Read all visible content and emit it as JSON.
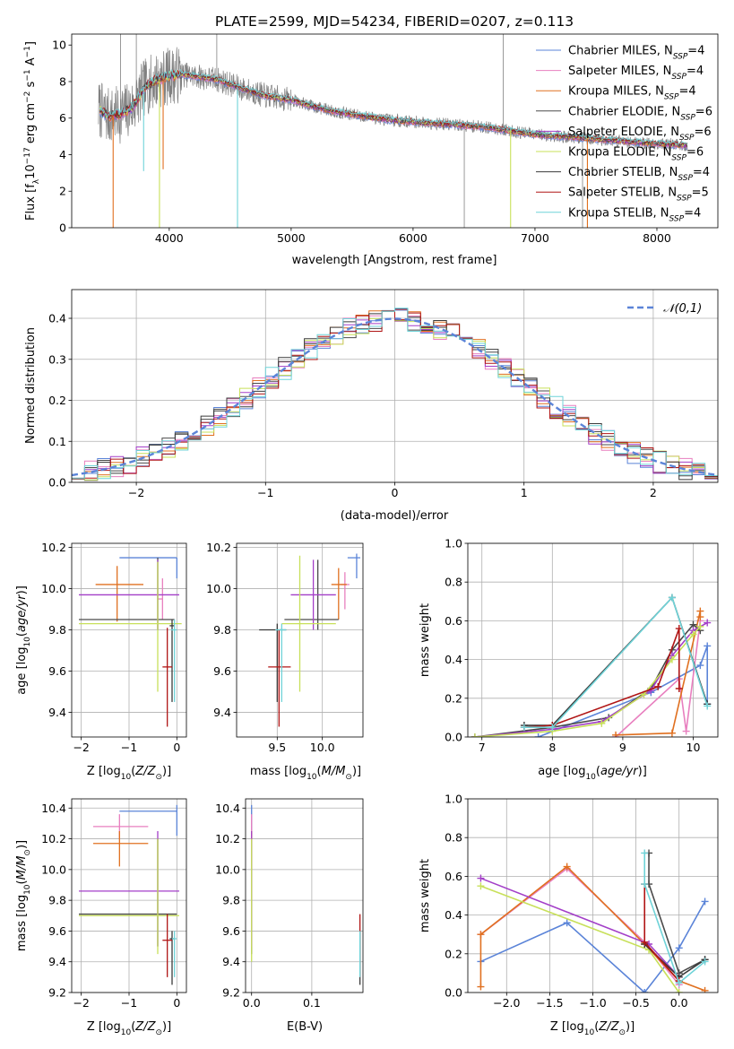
{
  "colors": {
    "Chabrier MILES": "#5b84d8",
    "Salpeter MILES": "#e87fbf",
    "Kroupa MILES": "#e07020",
    "Chabrier ELODIE": "#4a4a4a",
    "Salpeter ELODIE": "#a33fc8",
    "Kroupa ELODIE": "#c8e05a",
    "Chabrier STELIB": "#3a3a3a",
    "Salpeter STELIB": "#b01515",
    "Kroupa STELIB": "#6fd3d8",
    "gauss": "#5b84d8"
  },
  "chart_data": [
    {
      "type": "line",
      "title": "PLATE=2599, MJD=54234, FIBERID=0207, z=0.113",
      "xlabel": "wavelength [Angstrom, rest frame]",
      "ylabel": "Flux [fλ10⁻¹⁷ erg cm⁻² s⁻¹ A⁻¹]",
      "xlim": [
        3200,
        8500
      ],
      "ylim": [
        0,
        10.6
      ],
      "xticks": [
        4000,
        5000,
        6000,
        7000,
        8000
      ],
      "yticks": [
        0,
        2,
        4,
        6,
        8,
        10
      ],
      "grid": false,
      "legend_position": "upper-right",
      "data_color": "#808080",
      "continuum": [
        [
          3420,
          6.5
        ],
        [
          3500,
          6.1
        ],
        [
          3600,
          6.2
        ],
        [
          3700,
          6.6
        ],
        [
          3800,
          7.7
        ],
        [
          3900,
          8.1
        ],
        [
          4000,
          8.3
        ],
        [
          4100,
          8.4
        ],
        [
          4200,
          8.3
        ],
        [
          4400,
          8.1
        ],
        [
          4600,
          7.6
        ],
        [
          4800,
          7.2
        ],
        [
          5000,
          7.0
        ],
        [
          5200,
          6.6
        ],
        [
          5400,
          6.3
        ],
        [
          5600,
          6.1
        ],
        [
          5800,
          5.9
        ],
        [
          6000,
          5.8
        ],
        [
          6200,
          5.7
        ],
        [
          6400,
          5.6
        ],
        [
          6600,
          5.5
        ],
        [
          6800,
          5.3
        ],
        [
          7000,
          5.1
        ],
        [
          7200,
          5.0
        ],
        [
          7400,
          4.9
        ],
        [
          7600,
          4.8
        ],
        [
          7800,
          4.7
        ],
        [
          8000,
          4.6
        ],
        [
          8250,
          4.5
        ]
      ],
      "series": [
        {
          "name": "Chabrier MILES, N_SSP=4",
          "key": "Chabrier MILES"
        },
        {
          "name": "Salpeter MILES, N_SSP=4",
          "key": "Salpeter MILES"
        },
        {
          "name": "Kroupa MILES, N_SSP=4",
          "key": "Kroupa MILES"
        },
        {
          "name": "Chabrier ELODIE, N_SSP=6",
          "key": "Chabrier ELODIE"
        },
        {
          "name": "Salpeter ELODIE, N_SSP=6",
          "key": "Salpeter ELODIE"
        },
        {
          "name": "Kroupa ELODIE, N_SSP=6",
          "key": "Kroupa ELODIE"
        },
        {
          "name": "Chabrier STELIB, N_SSP=4",
          "key": "Chabrier STELIB"
        },
        {
          "name": "Salpeter STELIB, N_SSP=5",
          "key": "Salpeter STELIB"
        },
        {
          "name": "Kroupa STELIB, N_SSP=4",
          "key": "Kroupa STELIB"
        }
      ]
    },
    {
      "type": "line",
      "xlabel": "(data-model)/error",
      "ylabel": "Normed distribution",
      "xlim": [
        -2.5,
        2.5
      ],
      "ylim": [
        0,
        0.47
      ],
      "xticks": [
        -2,
        -1,
        0,
        1,
        2
      ],
      "yticks": [
        0.0,
        0.1,
        0.2,
        0.3,
        0.4
      ],
      "grid": true,
      "legend": "𝒩(0,1)",
      "legend_position": "upper-right",
      "bin_width": 0.1,
      "bin_range": [
        -2.5,
        2.5
      ]
    },
    {
      "type": "scatter",
      "xlabel": "Z [log10(Z/Z⊙)]",
      "ylabel": "age [log10(age/yr)]",
      "xlim": [
        -2.2,
        0.2
      ],
      "ylim": [
        9.28,
        10.22
      ],
      "xticks": [
        -2,
        -1,
        0
      ],
      "yticks": [
        9.4,
        9.6,
        9.8,
        10.0,
        10.2
      ],
      "grid": true,
      "points": [
        {
          "key": "Chabrier MILES",
          "x": 0.0,
          "x_lo": -1.2,
          "x_hi": 0.0,
          "y": 10.15,
          "y_lo": 10.05,
          "y_hi": 10.15
        },
        {
          "key": "Salpeter MILES",
          "x": -0.3,
          "x_lo": -0.4,
          "x_hi": -0.3,
          "y": 9.95,
          "y_lo": 9.85,
          "y_hi": 10.05
        },
        {
          "key": "Kroupa MILES",
          "x": -1.25,
          "x_lo": -1.7,
          "x_hi": -0.7,
          "y": 10.02,
          "y_lo": 9.84,
          "y_hi": 10.11
        },
        {
          "key": "Chabrier ELODIE",
          "x": -0.4,
          "x_lo": -2.05,
          "x_hi": -0.05,
          "y": 9.85,
          "y_lo": 9.8,
          "y_hi": 10.15
        },
        {
          "key": "Salpeter ELODIE",
          "x": -0.4,
          "x_lo": -2.05,
          "x_hi": 0.05,
          "y": 9.97,
          "y_lo": 9.8,
          "y_hi": 10.14
        },
        {
          "key": "Kroupa ELODIE",
          "x": -0.4,
          "x_lo": -2.05,
          "x_hi": 0.1,
          "y": 9.83,
          "y_lo": 9.5,
          "y_hi": 10.13
        },
        {
          "key": "Chabrier STELIB",
          "x": -0.1,
          "x_lo": -0.15,
          "x_hi": -0.05,
          "y": 9.82,
          "y_lo": 9.45,
          "y_hi": 9.85
        },
        {
          "key": "Salpeter STELIB",
          "x": -0.2,
          "x_lo": -0.3,
          "x_hi": -0.1,
          "y": 9.62,
          "y_lo": 9.33,
          "y_hi": 9.81
        },
        {
          "key": "Kroupa STELIB",
          "x": -0.05,
          "x_lo": -0.12,
          "x_hi": 0.0,
          "y": 9.8,
          "y_lo": 9.45,
          "y_hi": 9.85
        }
      ]
    },
    {
      "type": "scatter",
      "xlabel": "mass [log10(M/M⊙)]",
      "xlim": [
        9.05,
        10.45
      ],
      "ylim": [
        9.28,
        10.22
      ],
      "xticks": [
        9.5,
        10.0
      ],
      "yticks": [
        9.4,
        9.6,
        9.8,
        10.0,
        10.2
      ],
      "grid": true,
      "points": [
        {
          "key": "Chabrier MILES",
          "x": 10.38,
          "x_lo": 10.28,
          "x_hi": 10.42,
          "y": 10.15,
          "y_lo": 10.05,
          "y_hi": 10.17
        },
        {
          "key": "Salpeter MILES",
          "x": 10.25,
          "x_lo": 10.2,
          "x_hi": 10.3,
          "y": 10.02,
          "y_lo": 9.9,
          "y_hi": 10.08
        },
        {
          "key": "Kroupa MILES",
          "x": 10.18,
          "x_lo": 10.1,
          "x_hi": 10.27,
          "y": 10.02,
          "y_lo": 9.85,
          "y_hi": 10.1
        },
        {
          "key": "Chabrier ELODIE",
          "x": 9.95,
          "x_lo": 9.58,
          "x_hi": 10.18,
          "y": 9.85,
          "y_lo": 9.8,
          "y_hi": 10.14
        },
        {
          "key": "Salpeter ELODIE",
          "x": 9.9,
          "x_lo": 9.65,
          "x_hi": 10.15,
          "y": 9.97,
          "y_lo": 9.8,
          "y_hi": 10.14
        },
        {
          "key": "Kroupa ELODIE",
          "x": 9.75,
          "x_lo": 9.55,
          "x_hi": 10.15,
          "y": 9.83,
          "y_lo": 9.5,
          "y_hi": 10.16
        },
        {
          "key": "Chabrier STELIB",
          "x": 9.5,
          "x_lo": 9.3,
          "x_hi": 9.6,
          "y": 9.8,
          "y_lo": 9.45,
          "y_hi": 9.83
        },
        {
          "key": "Salpeter STELIB",
          "x": 9.52,
          "x_lo": 9.4,
          "x_hi": 9.65,
          "y": 9.62,
          "y_lo": 9.33,
          "y_hi": 9.8
        },
        {
          "key": "Kroupa STELIB",
          "x": 9.55,
          "x_lo": 9.48,
          "x_hi": 9.6,
          "y": 9.8,
          "y_lo": 9.45,
          "y_hi": 9.83
        }
      ]
    },
    {
      "type": "line",
      "xlabel": "age [log10(age/yr)]",
      "ylabel": "mass weight",
      "xlim": [
        6.8,
        10.35
      ],
      "ylim": [
        0,
        1
      ],
      "xticks": [
        7,
        8,
        9,
        10
      ],
      "yticks": [
        0.0,
        0.2,
        0.4,
        0.6,
        0.8,
        1.0
      ],
      "grid": true,
      "series": [
        {
          "key": "Chabrier MILES",
          "x": [
            7.8,
            9.4,
            10.1,
            10.2,
            10.2
          ],
          "y": [
            0.0,
            0.23,
            0.37,
            0.47,
            0.17
          ]
        },
        {
          "key": "Salpeter MILES",
          "x": [
            8.9,
            9.8,
            9.9,
            10.1
          ],
          "y": [
            0.0,
            0.3,
            0.03,
            0.6
          ]
        },
        {
          "key": "Kroupa MILES",
          "x": [
            8.9,
            9.7,
            10.1,
            10.1
          ],
          "y": [
            0.01,
            0.02,
            0.65,
            0.62
          ]
        },
        {
          "key": "Chabrier ELODIE",
          "x": [
            6.9,
            8.0,
            8.8,
            9.4,
            9.7,
            10.0,
            10.1
          ],
          "y": [
            0.0,
            0.05,
            0.1,
            0.25,
            0.45,
            0.58,
            0.55
          ]
        },
        {
          "key": "Salpeter ELODIE",
          "x": [
            6.9,
            8.0,
            8.7,
            9.4,
            9.7,
            10.0,
            10.2
          ],
          "y": [
            0.0,
            0.04,
            0.08,
            0.24,
            0.42,
            0.55,
            0.59
          ]
        },
        {
          "key": "Kroupa ELODIE",
          "x": [
            6.9,
            8.0,
            8.7,
            9.3,
            9.7,
            10.0,
            10.1
          ],
          "y": [
            0.0,
            0.03,
            0.07,
            0.22,
            0.4,
            0.53,
            0.57
          ]
        },
        {
          "key": "Chabrier STELIB",
          "x": [
            7.6,
            8.0,
            9.7,
            10.2
          ],
          "y": [
            0.06,
            0.06,
            0.72,
            0.17
          ]
        },
        {
          "key": "Salpeter STELIB",
          "x": [
            7.6,
            8.0,
            9.5,
            9.8,
            9.8
          ],
          "y": [
            0.05,
            0.06,
            0.26,
            0.56,
            0.25
          ]
        },
        {
          "key": "Kroupa STELIB",
          "x": [
            7.6,
            8.0,
            9.7,
            10.2
          ],
          "y": [
            0.05,
            0.05,
            0.72,
            0.16
          ]
        }
      ]
    },
    {
      "type": "scatter",
      "xlabel": "Z [log10(Z/Z⊙)]",
      "ylabel": "mass [log10(M/M⊙)]",
      "xlim": [
        -2.2,
        0.2
      ],
      "ylim": [
        9.2,
        10.46
      ],
      "xticks": [
        -2,
        -1,
        0
      ],
      "yticks": [
        9.2,
        9.4,
        9.6,
        9.8,
        10.0,
        10.2,
        10.4
      ],
      "grid": true,
      "points": [
        {
          "key": "Chabrier MILES",
          "x": 0.0,
          "x_lo": -1.2,
          "x_hi": 0.0,
          "y": 10.38,
          "y_lo": 10.22,
          "y_hi": 10.42
        },
        {
          "key": "Salpeter MILES",
          "x": -1.2,
          "x_lo": -1.75,
          "x_hi": -0.6,
          "y": 10.28,
          "y_lo": 10.2,
          "y_hi": 10.36
        },
        {
          "key": "Kroupa MILES",
          "x": -1.2,
          "x_lo": -1.75,
          "x_hi": -0.6,
          "y": 10.17,
          "y_lo": 10.02,
          "y_hi": 10.25
        },
        {
          "key": "Chabrier ELODIE",
          "x": -0.4,
          "x_lo": -2.05,
          "x_hi": 0.0,
          "y": 9.71,
          "y_lo": 9.5,
          "y_hi": 10.2
        },
        {
          "key": "Salpeter ELODIE",
          "x": -0.4,
          "x_lo": -2.05,
          "x_hi": 0.05,
          "y": 9.86,
          "y_lo": 9.5,
          "y_hi": 10.25
        },
        {
          "key": "Kroupa ELODIE",
          "x": -0.4,
          "x_lo": -2.05,
          "x_hi": 0.05,
          "y": 9.7,
          "y_lo": 9.45,
          "y_hi": 10.2
        },
        {
          "key": "Chabrier STELIB",
          "x": -0.1,
          "x_lo": -0.15,
          "x_hi": -0.05,
          "y": 9.55,
          "y_lo": 9.25,
          "y_hi": 9.6
        },
        {
          "key": "Salpeter STELIB",
          "x": -0.2,
          "x_lo": -0.3,
          "x_hi": -0.1,
          "y": 9.54,
          "y_lo": 9.3,
          "y_hi": 9.71
        },
        {
          "key": "Kroupa STELIB",
          "x": -0.05,
          "x_lo": -0.1,
          "x_hi": 0.0,
          "y": 9.55,
          "y_lo": 9.3,
          "y_hi": 9.6
        }
      ]
    },
    {
      "type": "scatter",
      "xlabel": "E(B-V)",
      "xlim": [
        -0.01,
        0.185
      ],
      "ylim": [
        9.2,
        10.46
      ],
      "xticks": [
        0.0,
        0.1
      ],
      "yticks": [
        9.2,
        9.4,
        9.6,
        9.8,
        10.0,
        10.2,
        10.4
      ],
      "grid": true,
      "points": [
        {
          "key": "Chabrier MILES",
          "x": 0.0,
          "x_lo": 0.0,
          "x_hi": 0.0,
          "y": 10.38,
          "y_lo": 10.22,
          "y_hi": 10.42
        },
        {
          "key": "Salpeter MILES",
          "x": 0.0,
          "x_lo": 0.0,
          "x_hi": 0.0,
          "y": 10.28,
          "y_lo": 10.2,
          "y_hi": 10.36
        },
        {
          "key": "Kroupa MILES",
          "x": 0.0,
          "x_lo": 0.0,
          "x_hi": 0.0,
          "y": 10.17,
          "y_lo": 10.02,
          "y_hi": 10.25
        },
        {
          "key": "Chabrier ELODIE",
          "x": 0.0,
          "x_lo": 0.0,
          "x_hi": 0.0,
          "y": 9.71,
          "y_lo": 9.45,
          "y_hi": 10.2
        },
        {
          "key": "Salpeter ELODIE",
          "x": 0.0,
          "x_lo": 0.0,
          "x_hi": 0.0,
          "y": 9.86,
          "y_lo": 9.5,
          "y_hi": 10.25
        },
        {
          "key": "Kroupa ELODIE",
          "x": 0.0,
          "x_lo": 0.0,
          "x_hi": 0.0,
          "y": 9.7,
          "y_lo": 9.4,
          "y_hi": 10.2
        },
        {
          "key": "Chabrier STELIB",
          "x": 0.18,
          "x_lo": 0.18,
          "x_hi": 0.18,
          "y": 9.55,
          "y_lo": 9.25,
          "y_hi": 9.6
        },
        {
          "key": "Salpeter STELIB",
          "x": 0.18,
          "x_lo": 0.18,
          "x_hi": 0.18,
          "y": 9.54,
          "y_lo": 9.3,
          "y_hi": 9.71
        },
        {
          "key": "Kroupa STELIB",
          "x": 0.18,
          "x_lo": 0.18,
          "x_hi": 0.18,
          "y": 9.55,
          "y_lo": 9.3,
          "y_hi": 9.6
        }
      ]
    },
    {
      "type": "line",
      "xlabel": "Z [log10(Z/Z⊙)]",
      "ylabel": "mass weight",
      "xlim": [
        -2.45,
        0.45
      ],
      "ylim": [
        0,
        1
      ],
      "xticks": [
        -2.0,
        -1.5,
        -1.0,
        -0.5,
        0.0
      ],
      "yticks": [
        0.0,
        0.2,
        0.4,
        0.6,
        0.8,
        1.0
      ],
      "grid": true,
      "series": [
        {
          "key": "Chabrier MILES",
          "x": [
            -2.3,
            -1.3,
            -0.4,
            0.0,
            0.3
          ],
          "y": [
            0.16,
            0.36,
            0.0,
            0.23,
            0.47
          ]
        },
        {
          "key": "Salpeter MILES",
          "x": [
            -2.3,
            -1.3,
            -0.4,
            0.0
          ],
          "y": [
            0.3,
            0.64,
            0.26,
            0.04
          ]
        },
        {
          "key": "Kroupa MILES",
          "x": [
            -2.3,
            -2.3,
            -1.3,
            -0.4,
            0.0,
            0.3
          ],
          "y": [
            0.03,
            0.3,
            0.65,
            0.25,
            0.06,
            0.01
          ]
        },
        {
          "key": "Chabrier ELODIE",
          "x": [
            -0.35,
            -0.35,
            0.0,
            0.3
          ],
          "y": [
            0.72,
            0.56,
            0.1,
            0.17
          ]
        },
        {
          "key": "Salpeter ELODIE",
          "x": [
            -2.3,
            -0.35,
            0.0
          ],
          "y": [
            0.59,
            0.25,
            0.08
          ]
        },
        {
          "key": "Kroupa ELODIE",
          "x": [
            -2.3,
            -0.35,
            0.0
          ],
          "y": [
            0.55,
            0.22,
            0.0
          ]
        },
        {
          "key": "Chabrier STELIB",
          "x": [
            -0.4,
            0.0,
            0.3
          ],
          "y": [
            0.25,
            0.08,
            0.17
          ]
        },
        {
          "key": "Salpeter STELIB",
          "x": [
            -0.4,
            -0.4,
            0.0
          ],
          "y": [
            0.56,
            0.26,
            0.06
          ]
        },
        {
          "key": "Kroupa STELIB",
          "x": [
            -0.4,
            -0.4,
            0.0,
            0.3
          ],
          "y": [
            0.72,
            0.56,
            0.05,
            0.16
          ]
        }
      ]
    }
  ]
}
